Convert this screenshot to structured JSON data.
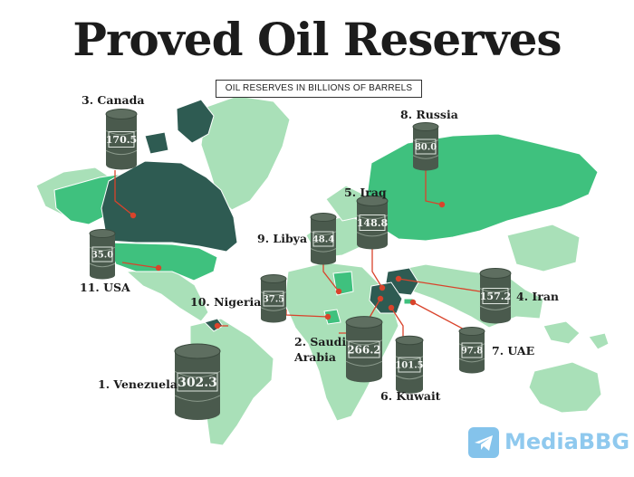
{
  "title": "Proved Oil Reserves",
  "subtitle": "OIL RESERVES IN BILLIONS OF BARRELS",
  "countries": [
    {
      "rank_label": "1. Venezuela",
      "value": "302.3"
    },
    {
      "rank_label": "2. Saudi Arabia",
      "value": "266.2"
    },
    {
      "rank_label": "3. Canada",
      "value": "170.5"
    },
    {
      "rank_label": "4. Iran",
      "value": "157.2"
    },
    {
      "rank_label": "5. Iraq",
      "value": "148.8"
    },
    {
      "rank_label": "6. Kuwait",
      "value": "101.5"
    },
    {
      "rank_label": "7. UAE",
      "value": "97.8"
    },
    {
      "rank_label": "8. Russia",
      "value": "80.0"
    },
    {
      "rank_label": "9. Libya",
      "value": "48.4"
    },
    {
      "rank_label": "10. Nigeria",
      "value": "37.5"
    },
    {
      "rank_label": "11. USA",
      "value": "35.0"
    }
  ],
  "watermark": "MediaBBG",
  "colors": {
    "land_light": "#a9e0b8",
    "land_highlight": "#3fc17e",
    "land_dark": "#2e5b52",
    "barrel": "#4a5a4d",
    "pointer": "#d9432b"
  }
}
